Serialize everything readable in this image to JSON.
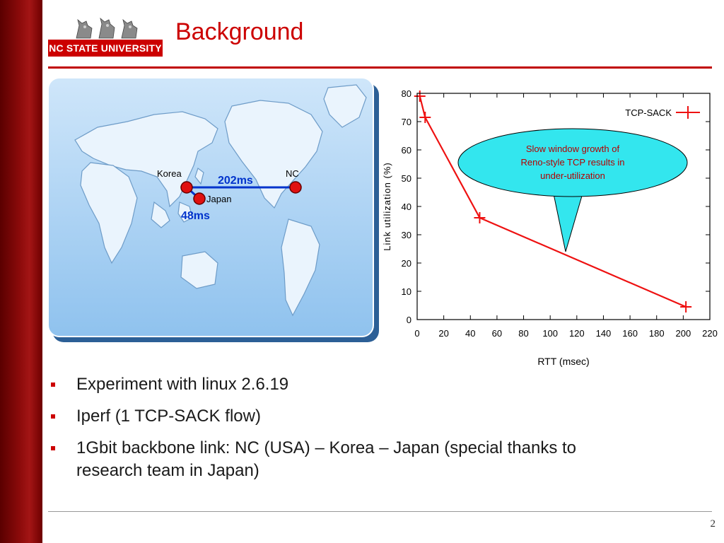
{
  "slide": {
    "title": "Background",
    "logo_text": "NC STATE UNIVERSITY",
    "page_number": "2"
  },
  "map": {
    "labels": {
      "korea": "Korea",
      "nc": "NC",
      "japan": "Japan",
      "rtt_korea_nc": "202ms",
      "rtt_korea_japan": "48ms"
    },
    "colors": {
      "ocean": "#a9d2f3",
      "land": "#eaf4fd",
      "link": "#0033cc",
      "node": "#e01010"
    }
  },
  "callout": {
    "lines": [
      "Slow window growth of",
      "Reno-style TCP results in",
      "under-utilization"
    ]
  },
  "bullets": [
    "Experiment with linux 2.6.19",
    "Iperf (1 TCP-SACK flow)",
    "1Gbit backbone link: NC (USA) – Korea – Japan (special thanks to",
    "research team in Japan)"
  ],
  "chart_data": {
    "type": "line",
    "xlabel": "RTT (msec)",
    "ylabel": "Link utilization (%)",
    "xlim": [
      0,
      220
    ],
    "ylim": [
      0,
      80
    ],
    "xticks": [
      0,
      20,
      40,
      60,
      80,
      100,
      120,
      140,
      160,
      180,
      200,
      220
    ],
    "yticks": [
      0,
      10,
      20,
      30,
      40,
      50,
      60,
      70,
      80
    ],
    "legend": "top-right",
    "series": [
      {
        "name": "TCP-SACK",
        "color": "#ee1111",
        "x": [
          2,
          6,
          47,
          202
        ],
        "y": [
          79,
          71.5,
          36,
          4.5
        ]
      }
    ]
  }
}
